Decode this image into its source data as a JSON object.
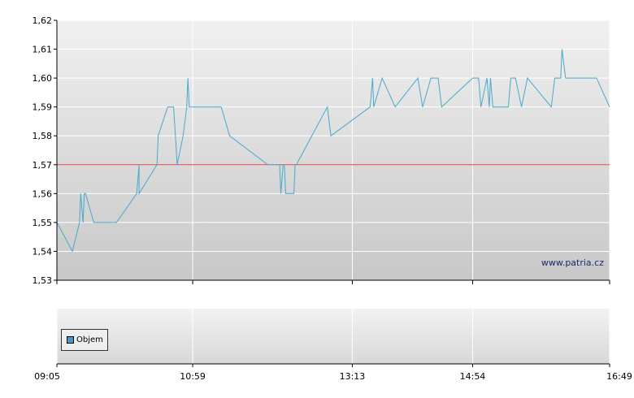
{
  "watermark": "www.patria.cz",
  "legend": {
    "label": "Objem",
    "color": "#4499cc"
  },
  "colors": {
    "line": "#4aa8cc",
    "reference": "#e04040",
    "grid": "#ffffff",
    "axis": "#000000"
  },
  "chart_data": [
    {
      "type": "line",
      "x_tick_labels": [
        "09:05",
        "10:59",
        "13:13",
        "14:54",
        "16:49"
      ],
      "x_tick_times": [
        "09:05",
        "10:59",
        "13:13",
        "14:54",
        "16:49"
      ],
      "y_tick_labels": [
        "1,53",
        "1,54",
        "1,55",
        "1,56",
        "1,57",
        "1,58",
        "1,59",
        "1,60",
        "1,61",
        "1,62"
      ],
      "ylim": [
        1.53,
        1.62
      ],
      "xlim": [
        "09:05",
        "16:49"
      ],
      "reference_line": 1.57,
      "grid": true,
      "series": [
        {
          "x": [
            "09:05",
            "09:18",
            "09:24",
            "09:25",
            "09:25",
            "09:27",
            "09:28",
            "09:29",
            "09:36",
            "09:55",
            "10:12",
            "10:14",
            "10:14",
            "10:29",
            "10:30",
            "10:38",
            "10:43",
            "10:46",
            "10:51",
            "10:54",
            "10:55",
            "10:56",
            "10:57",
            "11:23",
            "11:30",
            "12:02",
            "12:12",
            "12:13",
            "12:15",
            "12:16",
            "12:17",
            "12:24",
            "12:25",
            "12:26",
            "12:52",
            "12:55",
            "13:28",
            "13:30",
            "13:31",
            "13:38",
            "13:49",
            "14:08",
            "14:12",
            "14:19",
            "14:25",
            "14:28",
            "14:54",
            "14:59",
            "15:01",
            "15:06",
            "15:08",
            "15:09",
            "15:11",
            "15:21",
            "15:22",
            "15:24",
            "15:26",
            "15:30",
            "15:35",
            "15:40",
            "16:00",
            "16:03",
            "16:07",
            "16:08",
            "16:09",
            "16:12",
            "16:38",
            "16:49"
          ],
          "y": [
            1.55,
            1.54,
            1.55,
            1.56,
            1.56,
            1.55,
            1.56,
            1.56,
            1.55,
            1.55,
            1.56,
            1.57,
            1.56,
            1.57,
            1.58,
            1.59,
            1.59,
            1.57,
            1.58,
            1.59,
            1.6,
            1.59,
            1.59,
            1.59,
            1.58,
            1.57,
            1.57,
            1.56,
            1.57,
            1.57,
            1.56,
            1.56,
            1.57,
            1.57,
            1.59,
            1.58,
            1.59,
            1.6,
            1.59,
            1.6,
            1.59,
            1.6,
            1.59,
            1.6,
            1.6,
            1.59,
            1.6,
            1.6,
            1.59,
            1.6,
            1.59,
            1.6,
            1.59,
            1.59,
            1.59,
            1.59,
            1.6,
            1.6,
            1.59,
            1.6,
            1.59,
            1.6,
            1.6,
            1.6,
            1.61,
            1.6,
            1.6,
            1.59
          ]
        }
      ]
    },
    {
      "type": "bar",
      "series": [
        {
          "name": "Objem",
          "values": []
        }
      ]
    }
  ]
}
